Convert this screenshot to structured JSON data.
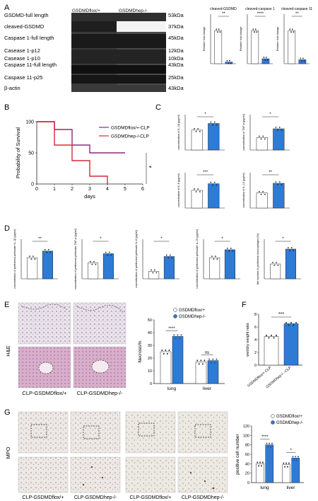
{
  "panels": {
    "A": {
      "letter": "A",
      "lanes": [
        "GSDMDflox/+",
        "GSDMDhep-/-"
      ],
      "blot_labels": [
        "GSDMD-full length",
        "cleaved-GSDMD",
        "Caspase 1-full length",
        "Casease 1-p12",
        "Casease 1-p10",
        "Caspase 11-full length",
        "Caspase 11-p25",
        "β-actin"
      ],
      "kda": [
        "53kDa",
        "37kDa",
        "45kDa",
        "12kDa",
        "10kDa",
        "43kDa",
        "25kDa",
        "43kDa"
      ]
    },
    "B": {
      "letter": "B",
      "ylabel": "Probability of Survival",
      "xlabel": "days",
      "sig": "*"
    },
    "C": {
      "letter": "C"
    },
    "D": {
      "letter": "D"
    },
    "E": {
      "letter": "E",
      "side": "H&E",
      "captions": [
        "CLP-GSDMDflox/+",
        "CLP-GSDMDhep-/-"
      ]
    },
    "F": {
      "letter": "F",
      "sig": "***"
    },
    "G": {
      "letter": "G",
      "side": "MPO",
      "captions": [
        "CLP-GSDMDflox/+",
        "CLP-GSDMDhep-/-",
        "CLP-GSDMDflox/+",
        "CLP-GSDMDhep-/-"
      ]
    }
  },
  "colors": {
    "control": "#ffffff",
    "knockout": "#2e7bd6",
    "control_line": "#8b2a7a",
    "knockout_line": "#d8283a"
  },
  "chart_data": [
    {
      "id": "A-bars",
      "type": "bar",
      "panel": "A",
      "subcharts": [
        {
          "title": "cleaved-GSDMD",
          "ylabel": "Relative fold change",
          "sig": "**",
          "values": [
            1.0,
            0.05
          ],
          "ylim": [
            0,
            1.5
          ]
        },
        {
          "title": "cleaved-caspase 1",
          "ylabel": "Relative fold change",
          "sig": "****",
          "values": [
            1.0,
            0.15
          ],
          "ylim": [
            0,
            1.5
          ]
        },
        {
          "title": "cleaved-caspase 11",
          "ylabel": "Relative fold change",
          "sig": "**",
          "values": [
            1.0,
            0.12
          ],
          "ylim": [
            0,
            1.5
          ]
        }
      ]
    },
    {
      "id": "B-survival",
      "type": "line",
      "panel": "B",
      "title": "",
      "xlabel": "days",
      "ylabel": "Probability of Survival",
      "xlim": [
        0,
        6
      ],
      "ylim": [
        0,
        100
      ],
      "xticks": [
        0,
        1,
        2,
        3,
        4,
        5,
        6
      ],
      "yticks": [
        0,
        50,
        100
      ],
      "series": [
        {
          "name": "GSDMDflox/+-CLP",
          "x": [
            0,
            1,
            1,
            2,
            2,
            3,
            3,
            5
          ],
          "y": [
            100,
            100,
            87.5,
            87.5,
            62.5,
            62.5,
            50,
            50
          ]
        },
        {
          "name": "GSDMDhep-/-CLP",
          "x": [
            0,
            1,
            1,
            2,
            2,
            3,
            3,
            4,
            4
          ],
          "y": [
            100,
            100,
            62.5,
            62.5,
            37.5,
            37.5,
            12.5,
            12.5,
            0
          ]
        }
      ]
    },
    {
      "id": "C-bars",
      "type": "bar",
      "panel": "C",
      "subcharts": [
        {
          "ylabel": "concentration of IL-1β (pg/ml)",
          "sig": "*",
          "values": [
            450,
            600
          ],
          "ylim": [
            0,
            800
          ]
        },
        {
          "ylabel": "concentration of TNF-α (pg/ml)",
          "sig": "*",
          "values": [
            350,
            600
          ],
          "ylim": [
            0,
            1000
          ]
        },
        {
          "ylabel": "concentration of IL-6 (pg/ml)",
          "sig": "***",
          "values": [
            400,
            550
          ],
          "ylim": [
            0,
            800
          ]
        },
        {
          "ylabel": "concentration of IL-10 (pg/ml)",
          "sig": "**",
          "values": [
            170,
            280
          ],
          "ylim": [
            0,
            400
          ]
        }
      ]
    },
    {
      "id": "D-bars",
      "type": "bar",
      "panel": "D",
      "subcharts": [
        {
          "ylabel": "concentration of peritoneal perfusate IL-1β (pg/ml)",
          "sig": "**",
          "values": [
            80,
            105
          ],
          "ylim": [
            0,
            150
          ]
        },
        {
          "ylabel": "concentration of peritoneal perfusate TNF-α (pg/ml)",
          "sig": "*",
          "values": [
            60,
            95
          ],
          "ylim": [
            0,
            150
          ]
        },
        {
          "ylabel": "concentration of peritoneal perfusate IL-6 (pg/ml)",
          "sig": "*",
          "values": [
            15,
            45
          ],
          "ylim": [
            0,
            80
          ]
        },
        {
          "ylabel": "concentration of peritoneal perfusate IL-10 (pg/ml)",
          "sig": "*",
          "values": [
            80,
            110
          ],
          "ylim": [
            0,
            150
          ]
        },
        {
          "ylabel": "the number of peritoneal macrophages (%)",
          "sig": "*",
          "values": [
            30,
            60
          ],
          "ylim": [
            0,
            80
          ]
        }
      ]
    },
    {
      "id": "E-bars",
      "type": "bar",
      "panel": "E",
      "ylabel": "Necrosis%",
      "categories": [
        "lung",
        "liver"
      ],
      "ylim": [
        0,
        50
      ],
      "yticks": [
        0,
        10,
        20,
        30,
        40,
        50
      ],
      "series": [
        {
          "name": "GSDMDflox/+",
          "values": [
            25,
            17
          ]
        },
        {
          "name": "GSDMDhep-/-",
          "values": [
            37,
            18
          ]
        }
      ],
      "sig": [
        "****",
        "ns"
      ]
    },
    {
      "id": "F-bars",
      "type": "bar",
      "panel": "F",
      "ylabel": "wet/dry weight ratio",
      "categories": [
        "GSDMDflox/+-CLP",
        "GSDMDhep-/- -CLP"
      ],
      "values": [
        4.5,
        6.5
      ],
      "ylim": [
        0,
        8
      ],
      "yticks": [
        0,
        2,
        4,
        6,
        8
      ],
      "sig": "***"
    },
    {
      "id": "G-bars",
      "type": "bar",
      "panel": "G",
      "ylabel": "positive cell number",
      "categories": [
        "lung",
        "liver"
      ],
      "ylim": [
        0,
        120
      ],
      "yticks": [
        0,
        20,
        40,
        60,
        80,
        100,
        120
      ],
      "series": [
        {
          "name": "GSDMDflox/+",
          "values": [
            40,
            38
          ]
        },
        {
          "name": "GSDMDhep-/-",
          "values": [
            80,
            52
          ]
        }
      ],
      "sig": [
        "****",
        "*"
      ]
    }
  ]
}
